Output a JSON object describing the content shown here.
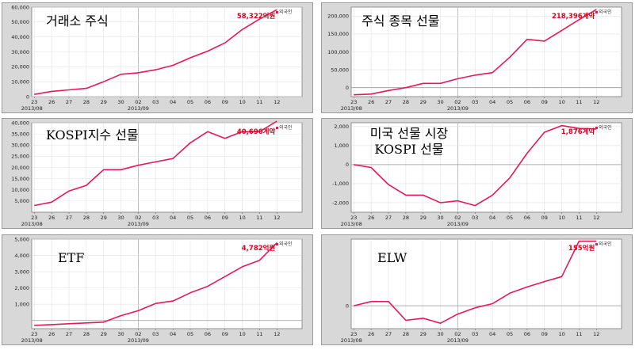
{
  "x_ticks": [
    "23",
    "26",
    "27",
    "28",
    "29",
    "30",
    "02",
    "03",
    "04",
    "05",
    "06",
    "09",
    "10",
    "11",
    "12"
  ],
  "month_labels": [
    "2013/08",
    "2013/09"
  ],
  "legend_label": "외국인",
  "chart_data": [
    {
      "type": "line",
      "title": "거래소 주식",
      "end_label": "58,322억원",
      "ylim": [
        0,
        60000
      ],
      "y_ticks": [
        "0",
        "10,000",
        "20,000",
        "30,000",
        "40,000",
        "50,000",
        "60,000"
      ],
      "y_values": [
        0,
        10000,
        20000,
        30000,
        40000,
        50000,
        60000
      ],
      "series": [
        {
          "values": [
            1500,
            3500,
            4500,
            5500,
            10000,
            15000,
            16000,
            18000,
            21000,
            26000,
            30500,
            36000,
            45000,
            52000,
            58322
          ]
        }
      ]
    },
    {
      "type": "line",
      "title": "주식 종목 선물",
      "end_label": "218,396계약",
      "ylim": [
        -25000,
        225000
      ],
      "y_ticks": [
        "0",
        "50,000",
        "100,000",
        "150,000",
        "200,000"
      ],
      "y_values": [
        0,
        50000,
        100000,
        150000,
        200000
      ],
      "series": [
        {
          "values": [
            -20000,
            -18000,
            -8000,
            0,
            12000,
            12000,
            25000,
            35000,
            42000,
            85000,
            135000,
            130000,
            160000,
            190000,
            218396
          ]
        }
      ]
    },
    {
      "type": "line",
      "title": "KOSPI지수 선물",
      "end_label": "40,696계약",
      "ylim": [
        0,
        40000
      ],
      "y_ticks": [
        "5,000",
        "10,000",
        "15,000",
        "20,000",
        "25,000",
        "30,000",
        "35,000",
        "40,000"
      ],
      "y_values": [
        5000,
        10000,
        15000,
        20000,
        25000,
        30000,
        35000,
        40000
      ],
      "series": [
        {
          "values": [
            3000,
            4500,
            9500,
            12000,
            19000,
            19000,
            21000,
            22500,
            24000,
            31000,
            36000,
            33000,
            36000,
            36000,
            40696
          ]
        }
      ]
    },
    {
      "type": "line",
      "title": "미국 선물 시장",
      "subtitle": "KOSPI 선물",
      "end_label": "1,876계약",
      "ylim": [
        -2500,
        2200
      ],
      "y_ticks": [
        "-2,000",
        "-1,000",
        "0",
        "1,000",
        "2,000"
      ],
      "y_values": [
        -2000,
        -1000,
        0,
        1000,
        2000
      ],
      "series": [
        {
          "values": [
            0,
            -150,
            -1050,
            -1600,
            -1600,
            -2000,
            -1900,
            -2150,
            -1600,
            -700,
            600,
            1700,
            2050,
            1900,
            1876
          ]
        }
      ]
    },
    {
      "type": "line",
      "title": "ETF",
      "end_label": "4,782억원",
      "ylim": [
        -500,
        5000
      ],
      "y_ticks": [
        "1,000",
        "2,000",
        "3,000",
        "4,000",
        "5,000"
      ],
      "y_values": [
        1000,
        2000,
        3000,
        4000,
        5000
      ],
      "series": [
        {
          "values": [
            -300,
            -250,
            -200,
            -150,
            -100,
            300,
            600,
            1050,
            1200,
            1700,
            2100,
            2700,
            3300,
            3700,
            4782
          ]
        }
      ]
    },
    {
      "type": "line",
      "title": "ELW",
      "end_label": "155억원",
      "ylim": [
        -55,
        160
      ],
      "y_ticks": [
        "0"
      ],
      "y_values": [
        0
      ],
      "series": [
        {
          "values": [
            0,
            10,
            10,
            -35,
            -30,
            -42,
            -20,
            -5,
            5,
            30,
            45,
            58,
            70,
            155,
            155
          ]
        }
      ]
    }
  ]
}
